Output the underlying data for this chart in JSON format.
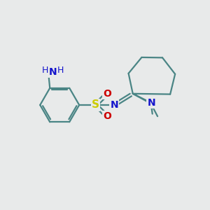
{
  "background_color": "#e8eaea",
  "bond_color": "#4a8585",
  "atom_colors": {
    "N": "#1414cc",
    "S": "#cccc00",
    "O": "#cc0000",
    "C": "#4a8585",
    "H": "#4a8585"
  },
  "figsize": [
    3.0,
    3.0
  ],
  "dpi": 100,
  "bond_lw": 1.6
}
